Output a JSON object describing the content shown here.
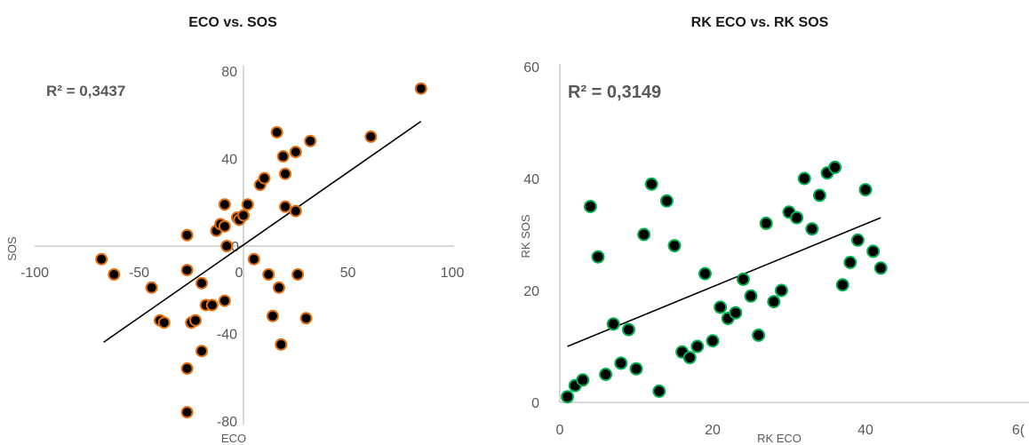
{
  "chart_data": [
    {
      "type": "scatter",
      "title": "ECO vs. SOS",
      "xlabel": "ECO",
      "ylabel": "SOS",
      "xlim": [
        -100,
        100
      ],
      "ylim": [
        -80,
        80
      ],
      "x_ticks": [
        "-100",
        "-50",
        "0",
        "50",
        "100"
      ],
      "y_ticks": [
        "-80",
        "-40",
        "0",
        "40",
        "80"
      ],
      "annotation": "R² = 0,3437",
      "trendline": {
        "from": [
          -67,
          -44
        ],
        "to": [
          85,
          57
        ]
      },
      "marker_color": "#e36c0a",
      "points": [
        [
          -68,
          -6
        ],
        [
          -62,
          -13
        ],
        [
          -44,
          -19
        ],
        [
          -40,
          -34
        ],
        [
          -38,
          -35
        ],
        [
          -27,
          5
        ],
        [
          -27,
          -11
        ],
        [
          -27,
          -56
        ],
        [
          -27,
          -76
        ],
        [
          -25,
          -35
        ],
        [
          -23,
          -34
        ],
        [
          -20,
          -17
        ],
        [
          -20,
          -48
        ],
        [
          -18,
          -27
        ],
        [
          -15,
          -27
        ],
        [
          -13,
          7
        ],
        [
          -11,
          10
        ],
        [
          -9,
          9
        ],
        [
          -9,
          19
        ],
        [
          -9,
          -25
        ],
        [
          -8,
          0
        ],
        [
          -3,
          13
        ],
        [
          -2,
          12
        ],
        [
          0,
          14
        ],
        [
          2,
          19
        ],
        [
          5,
          -6
        ],
        [
          8,
          28
        ],
        [
          10,
          31
        ],
        [
          12,
          -13
        ],
        [
          14,
          -32
        ],
        [
          16,
          52
        ],
        [
          17,
          -19
        ],
        [
          18,
          -45
        ],
        [
          19,
          41
        ],
        [
          20,
          33
        ],
        [
          20,
          18
        ],
        [
          25,
          16
        ],
        [
          25,
          43
        ],
        [
          26,
          -13
        ],
        [
          30,
          -33
        ],
        [
          32,
          48
        ],
        [
          61,
          50
        ],
        [
          85,
          72
        ]
      ]
    },
    {
      "type": "scatter",
      "title": "RK ECO vs. RK SOS",
      "xlabel": "RK ECO",
      "ylabel": "RK SOS",
      "xlim": [
        0,
        60
      ],
      "ylim": [
        0,
        60
      ],
      "x_ticks": [
        "0",
        "20",
        "40",
        "6("
      ],
      "y_ticks": [
        "0",
        "20",
        "40",
        "60"
      ],
      "annotation": "R² = 0,3149",
      "trendline": {
        "from": [
          1,
          10
        ],
        "to": [
          42,
          33
        ]
      },
      "marker_color": "#00b050",
      "points": [
        [
          1,
          1
        ],
        [
          2,
          3
        ],
        [
          3,
          4
        ],
        [
          4,
          35
        ],
        [
          5,
          26
        ],
        [
          6,
          5
        ],
        [
          7,
          14
        ],
        [
          8,
          7
        ],
        [
          9,
          13
        ],
        [
          10,
          6
        ],
        [
          11,
          30
        ],
        [
          12,
          39
        ],
        [
          13,
          2
        ],
        [
          14,
          36
        ],
        [
          15,
          28
        ],
        [
          16,
          9
        ],
        [
          17,
          8
        ],
        [
          18,
          10
        ],
        [
          19,
          23
        ],
        [
          20,
          11
        ],
        [
          21,
          17
        ],
        [
          22,
          15
        ],
        [
          23,
          16
        ],
        [
          24,
          22
        ],
        [
          25,
          19
        ],
        [
          26,
          12
        ],
        [
          27,
          32
        ],
        [
          28,
          18
        ],
        [
          29,
          20
        ],
        [
          30,
          34
        ],
        [
          31,
          33
        ],
        [
          32,
          40
        ],
        [
          33,
          31
        ],
        [
          34,
          37
        ],
        [
          35,
          41
        ],
        [
          36,
          42
        ],
        [
          37,
          21
        ],
        [
          38,
          25
        ],
        [
          39,
          29
        ],
        [
          40,
          38
        ],
        [
          41,
          27
        ],
        [
          42,
          24
        ]
      ]
    }
  ]
}
